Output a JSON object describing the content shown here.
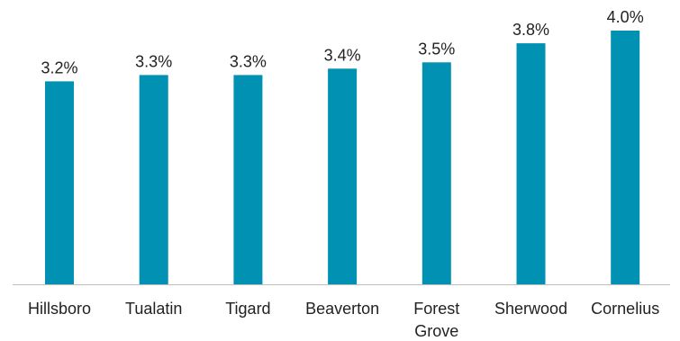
{
  "chart_data": {
    "type": "bar",
    "categories": [
      [
        "Hillsboro"
      ],
      [
        "Tualatin"
      ],
      [
        "Tigard"
      ],
      [
        "Beaverton"
      ],
      [
        "Forest",
        "Grove"
      ],
      [
        "Sherwood"
      ],
      [
        "Cornelius"
      ]
    ],
    "values": [
      3.2,
      3.3,
      3.3,
      3.4,
      3.5,
      3.8,
      4.0
    ],
    "value_labels": [
      "3.2%",
      "3.3%",
      "3.3%",
      "3.4%",
      "3.5%",
      "3.8%",
      "4.0%"
    ],
    "ylim": [
      0,
      4.0
    ],
    "grid": false,
    "legend": "none",
    "bar_color": "#0091B3",
    "axis_color": "#BFBFBF"
  }
}
